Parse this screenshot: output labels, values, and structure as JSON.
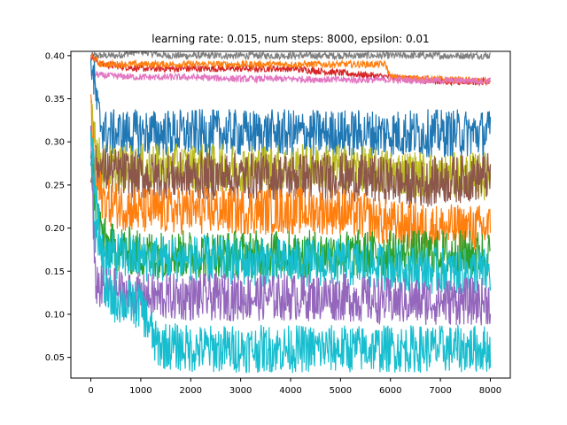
{
  "chart_data": {
    "type": "line",
    "title": "learning rate: 0.015, num steps: 8000, epsilon: 0.01",
    "xlabel": "",
    "ylabel": "",
    "xlim": [
      -400,
      8400
    ],
    "ylim": [
      0.026,
      0.405
    ],
    "xticks": [
      0,
      1000,
      2000,
      3000,
      4000,
      5000,
      6000,
      7000,
      8000
    ],
    "yticks": [
      0.05,
      0.1,
      0.15,
      0.2,
      0.25,
      0.3,
      0.35,
      0.4
    ],
    "grid": false,
    "legend": "none",
    "series": [
      {
        "color": "#7f7f7f",
        "x": [
          0,
          100,
          500,
          1000,
          1500,
          2000,
          2500,
          3000,
          8000
        ],
        "y": [
          0.4,
          0.4,
          0.4,
          0.405,
          0.4,
          0.4,
          0.4,
          0.4,
          0.4
        ]
      },
      {
        "color": "#d62728",
        "x": [
          0,
          200,
          1000,
          2000,
          3000,
          4000,
          5000,
          6000,
          7000,
          8000
        ],
        "y": [
          0.4,
          0.39,
          0.385,
          0.385,
          0.385,
          0.385,
          0.38,
          0.375,
          0.37,
          0.37
        ]
      },
      {
        "color": "#ff7f0e",
        "x": [
          0,
          200,
          1000,
          2000,
          3000,
          4000,
          5000,
          5900,
          6000,
          8000
        ],
        "y": [
          0.4,
          0.39,
          0.39,
          0.39,
          0.39,
          0.39,
          0.39,
          0.39,
          0.375,
          0.37
        ]
      },
      {
        "color": "#e377c2",
        "x": [
          0,
          200,
          1000,
          2000,
          3000,
          4000,
          5000,
          6000,
          7000,
          8000
        ],
        "y": [
          0.38,
          0.377,
          0.375,
          0.375,
          0.373,
          0.373,
          0.372,
          0.372,
          0.371,
          0.371
        ]
      },
      {
        "color": "#1f77b4",
        "x": [
          0,
          150,
          300,
          1000,
          2000,
          3000,
          4000,
          5000,
          6000,
          7000,
          8000
        ],
        "y": [
          0.4,
          0.33,
          0.31,
          0.31,
          0.31,
          0.31,
          0.31,
          0.31,
          0.31,
          0.31,
          0.31
        ]
      },
      {
        "color": "#bcbd22",
        "x": [
          0,
          150,
          300,
          1000,
          2000,
          3000,
          4000,
          5000,
          6000,
          7000,
          8000
        ],
        "y": [
          0.35,
          0.28,
          0.27,
          0.27,
          0.27,
          0.27,
          0.27,
          0.27,
          0.265,
          0.26,
          0.26
        ]
      },
      {
        "color": "#8c564b",
        "x": [
          0,
          1000,
          2000,
          3000,
          4000,
          5000,
          6000,
          6500,
          7000,
          8000
        ],
        "y": [
          0.27,
          0.26,
          0.26,
          0.26,
          0.26,
          0.26,
          0.255,
          0.25,
          0.255,
          0.26
        ]
      },
      {
        "color": "#ff7f0e",
        "x": [
          0,
          100,
          300,
          1000,
          2000,
          3000,
          4000,
          5000,
          6000,
          7000,
          8000
        ],
        "y": [
          0.34,
          0.25,
          0.23,
          0.22,
          0.22,
          0.22,
          0.22,
          0.22,
          0.205,
          0.2,
          0.2
        ]
      },
      {
        "color": "#2ca02c",
        "x": [
          0,
          100,
          300,
          1000,
          2000,
          3000,
          8000
        ],
        "y": [
          0.3,
          0.22,
          0.18,
          0.17,
          0.17,
          0.17,
          0.17
        ]
      },
      {
        "color": "#17becf",
        "x": [
          0,
          100,
          300,
          1000,
          2000,
          3000,
          4000,
          5000,
          6000,
          7000,
          8000
        ],
        "y": [
          0.28,
          0.19,
          0.17,
          0.165,
          0.165,
          0.16,
          0.16,
          0.16,
          0.155,
          0.15,
          0.15
        ]
      },
      {
        "color": "#9467bd",
        "x": [
          0,
          80,
          200,
          1000,
          2000,
          3000,
          4000,
          5000,
          6000,
          7000,
          8000
        ],
        "y": [
          0.3,
          0.14,
          0.13,
          0.12,
          0.12,
          0.12,
          0.12,
          0.12,
          0.115,
          0.115,
          0.115
        ]
      },
      {
        "color": "#17becf",
        "x": [
          0,
          300,
          1000,
          1150,
          1300,
          2000,
          3000,
          4000,
          5000,
          6000,
          7000,
          8000
        ],
        "y": [
          0.3,
          0.12,
          0.11,
          0.09,
          0.065,
          0.06,
          0.06,
          0.06,
          0.06,
          0.06,
          0.06,
          0.06
        ]
      }
    ]
  }
}
